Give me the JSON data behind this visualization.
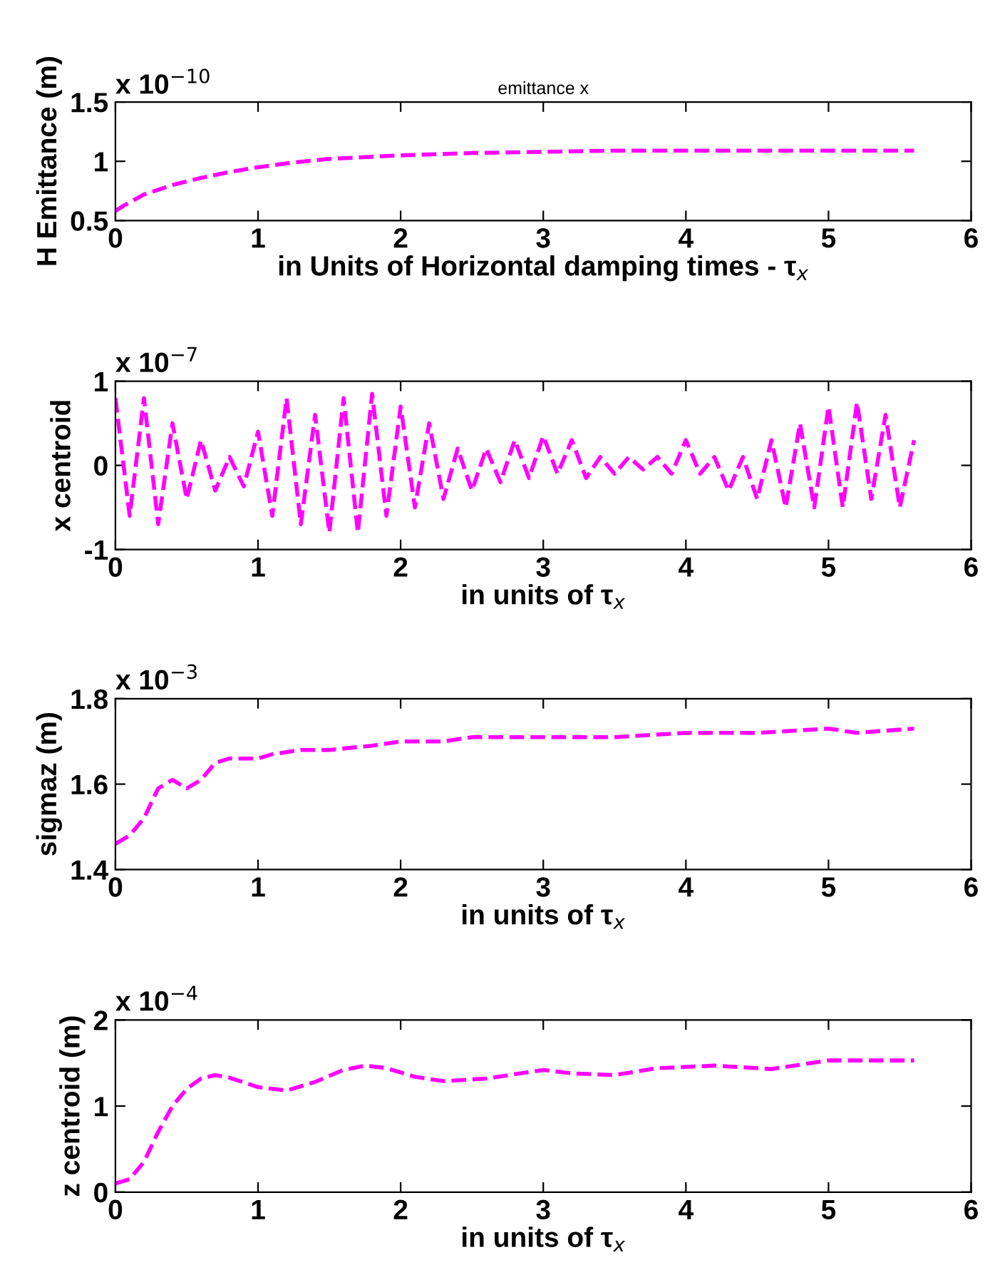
{
  "chart_data": [
    {
      "type": "line",
      "title": "emittance x",
      "xlabel": "in Units of Horizontal damping times - τ$_{x}$",
      "ylabel": "H Emittance (m)",
      "annotations": [
        "x 10$^{−10}$"
      ],
      "line_style": "dashed",
      "xlim": [
        0,
        6
      ],
      "xticks": [
        0,
        1,
        2,
        3,
        4,
        5,
        6
      ],
      "ylim": [
        0.5,
        1.5
      ],
      "yticks": [
        0.5,
        1,
        1.5
      ],
      "x": [
        0,
        0.05,
        0.2,
        0.4,
        0.6,
        0.8,
        1,
        1.25,
        1.5,
        2,
        2.5,
        3,
        3.5,
        4,
        4.5,
        5,
        5.6
      ],
      "series": [
        {
          "color": "#ff00ff",
          "values": [
            0.58,
            0.62,
            0.72,
            0.8,
            0.86,
            0.91,
            0.95,
            0.99,
            1.02,
            1.05,
            1.07,
            1.08,
            1.09,
            1.09,
            1.09,
            1.09,
            1.09
          ]
        }
      ]
    },
    {
      "type": "line",
      "xlabel": "in units of τ$_{x}$",
      "ylabel": "x centroid",
      "annotations": [
        "x 10$^{−7}$"
      ],
      "line_style": "dashed",
      "xlim": [
        0,
        6
      ],
      "xticks": [
        0,
        1,
        2,
        3,
        4,
        5,
        6
      ],
      "ylim": [
        -1,
        1
      ],
      "yticks": [
        -1,
        0,
        1
      ],
      "x": [
        0,
        0.1,
        0.2,
        0.3,
        0.4,
        0.5,
        0.6,
        0.7,
        0.8,
        0.9,
        1.0,
        1.1,
        1.2,
        1.3,
        1.4,
        1.5,
        1.6,
        1.7,
        1.8,
        1.9,
        2.0,
        2.1,
        2.2,
        2.3,
        2.4,
        2.5,
        2.6,
        2.7,
        2.8,
        2.9,
        3.0,
        3.1,
        3.2,
        3.3,
        3.4,
        3.5,
        3.6,
        3.7,
        3.8,
        3.9,
        4.0,
        4.1,
        4.2,
        4.3,
        4.4,
        4.5,
        4.6,
        4.7,
        4.8,
        4.9,
        5.0,
        5.1,
        5.2,
        5.3,
        5.4,
        5.5,
        5.6
      ],
      "series": [
        {
          "color": "#ff00ff",
          "values": [
            0.8,
            -0.6,
            0.8,
            -0.7,
            0.5,
            -0.4,
            0.3,
            -0.3,
            0.1,
            -0.25,
            0.4,
            -0.6,
            0.8,
            -0.7,
            0.6,
            -0.8,
            0.8,
            -0.8,
            0.85,
            -0.6,
            0.7,
            -0.5,
            0.5,
            -0.4,
            0.2,
            -0.3,
            0.2,
            -0.2,
            0.3,
            -0.15,
            0.35,
            -0.1,
            0.3,
            -0.15,
            0.1,
            -0.1,
            0.1,
            -0.05,
            0.1,
            -0.1,
            0.3,
            -0.1,
            0.1,
            -0.3,
            0.1,
            -0.4,
            0.3,
            -0.5,
            0.5,
            -0.5,
            0.7,
            -0.5,
            0.75,
            -0.4,
            0.6,
            -0.5,
            0.3
          ]
        }
      ]
    },
    {
      "type": "line",
      "xlabel": "in units of τ$_{x}$",
      "ylabel": "sigmaz (m)",
      "annotations": [
        "x 10$^{−3}$"
      ],
      "line_style": "dashed",
      "xlim": [
        0,
        6
      ],
      "xticks": [
        0,
        1,
        2,
        3,
        4,
        5,
        6
      ],
      "ylim": [
        1.4,
        1.8
      ],
      "yticks": [
        1.4,
        1.6,
        1.8
      ],
      "x": [
        0,
        0.1,
        0.2,
        0.3,
        0.4,
        0.5,
        0.6,
        0.7,
        0.8,
        0.9,
        1.0,
        1.1,
        1.3,
        1.5,
        1.8,
        2,
        2.3,
        2.5,
        3,
        3.5,
        4,
        4.5,
        5,
        5.2,
        5.6
      ],
      "series": [
        {
          "color": "#ff00ff",
          "values": [
            1.46,
            1.48,
            1.52,
            1.59,
            1.61,
            1.59,
            1.61,
            1.65,
            1.66,
            1.66,
            1.66,
            1.67,
            1.68,
            1.68,
            1.69,
            1.7,
            1.7,
            1.71,
            1.71,
            1.71,
            1.72,
            1.72,
            1.73,
            1.72,
            1.73
          ]
        }
      ]
    },
    {
      "type": "line",
      "xlabel": "in units of τ$_{x}$",
      "ylabel": "z centroid (m)",
      "annotations": [
        "x 10$^{−4}$"
      ],
      "line_style": "dashed",
      "xlim": [
        0,
        6
      ],
      "xticks": [
        0,
        1,
        2,
        3,
        4,
        5,
        6
      ],
      "ylim": [
        0,
        2
      ],
      "yticks": [
        0,
        1,
        2
      ],
      "x": [
        0,
        0.1,
        0.2,
        0.3,
        0.4,
        0.5,
        0.6,
        0.7,
        0.8,
        1.0,
        1.2,
        1.4,
        1.6,
        1.75,
        1.9,
        2.1,
        2.3,
        2.6,
        3.0,
        3.2,
        3.5,
        3.8,
        4.2,
        4.6,
        5.0,
        5.6
      ],
      "series": [
        {
          "color": "#ff00ff",
          "values": [
            0.1,
            0.15,
            0.35,
            0.7,
            1.0,
            1.2,
            1.32,
            1.36,
            1.33,
            1.22,
            1.18,
            1.28,
            1.42,
            1.47,
            1.44,
            1.34,
            1.29,
            1.32,
            1.42,
            1.38,
            1.36,
            1.44,
            1.47,
            1.43,
            1.53,
            1.53
          ]
        }
      ]
    }
  ]
}
